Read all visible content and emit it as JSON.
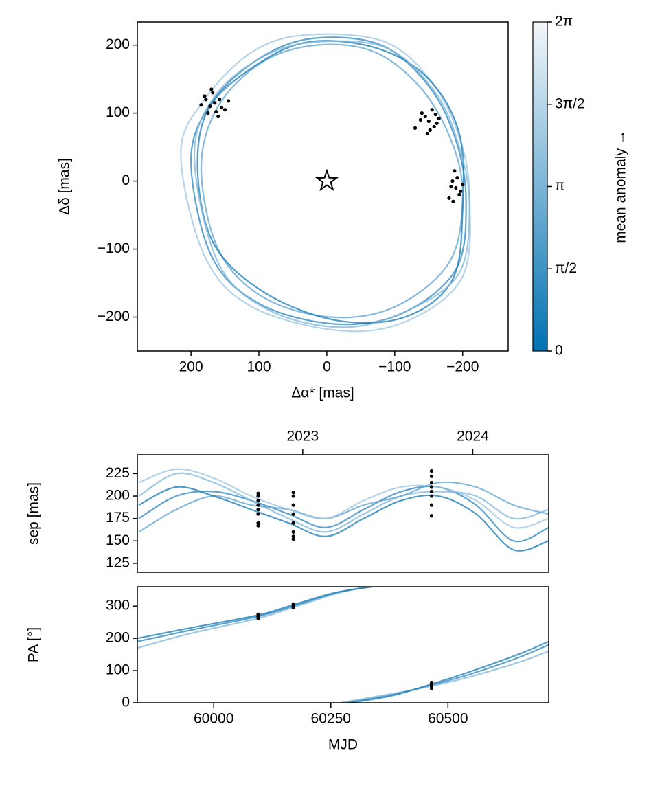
{
  "chart_data": [
    {
      "type": "orbit",
      "xlabel": "Δα* [mas]",
      "ylabel": "Δδ [mas]",
      "xlim": [
        279,
        -267
      ],
      "ylim": [
        -250,
        234
      ],
      "xticks": [
        200,
        100,
        0,
        {
          "value": -100,
          "label": "−100"
        },
        {
          "value": -200,
          "label": "−200"
        }
      ],
      "yticks": [
        {
          "value": -200,
          "label": "−200"
        },
        {
          "value": -100,
          "label": "−100"
        },
        0,
        100,
        200
      ],
      "series": [
        {
          "color": "#2a86bf",
          "x": [
            200,
            170,
            100,
            20,
            -80,
            -150,
            -190,
            -205,
            -190,
            -110,
            -10,
            100,
            170
          ],
          "y": [
            30,
            115,
            180,
            210,
            200,
            140,
            60,
            -30,
            -130,
            -195,
            -210,
            -180,
            -110
          ]
        },
        {
          "color": "#5ea3cf",
          "x": [
            185,
            160,
            95,
            15,
            -70,
            -140,
            -185,
            -200,
            -180,
            -100,
            -5,
            95,
            160
          ],
          "y": [
            20,
            110,
            175,
            200,
            190,
            135,
            55,
            -25,
            -120,
            -185,
            -200,
            -170,
            -100
          ]
        },
        {
          "color": "#9cc6e2",
          "x": [
            215,
            180,
            110,
            30,
            -85,
            -155,
            -195,
            -210,
            -200,
            -120,
            -20,
            110,
            180
          ],
          "y": [
            40,
            120,
            190,
            215,
            205,
            145,
            65,
            -20,
            -140,
            -205,
            -220,
            -185,
            -110
          ]
        },
        {
          "color": "#1479b6",
          "x": [
            190,
            175,
            105,
            25,
            -75,
            -150,
            -195,
            -200,
            -185,
            -115,
            -15,
            90,
            165
          ],
          "y": [
            10,
            105,
            170,
            205,
            195,
            150,
            70,
            -40,
            -145,
            -200,
            -205,
            -165,
            -95
          ]
        },
        {
          "color": "#7db5d9",
          "x": [
            195,
            165,
            90,
            10,
            -90,
            -160,
            -195,
            -210,
            -195,
            -120,
            -25,
            85,
            160
          ],
          "y": [
            35,
            125,
            185,
            205,
            195,
            130,
            50,
            -35,
            -135,
            -190,
            -215,
            -190,
            -120
          ]
        }
      ],
      "points": {
        "color": "#000000",
        "x": [
          165,
          158,
          172,
          180,
          150,
          168,
          175,
          160,
          185,
          145,
          170,
          155,
          178,
          163,
          -150,
          -145,
          -158,
          -140,
          -162,
          -130,
          -155,
          -148,
          -165,
          -138,
          -152,
          -160,
          -190,
          -185,
          -195,
          -188,
          -200,
          -180,
          -192,
          -186,
          -197,
          -183
        ],
        "y": [
          115,
          120,
          110,
          125,
          105,
          130,
          100,
          95,
          112,
          118,
          135,
          108,
          120,
          102,
          88,
          95,
          80,
          100,
          85,
          78,
          105,
          70,
          92,
          90,
          75,
          98,
          -10,
          0,
          -20,
          15,
          -5,
          -25,
          5,
          -30,
          -15,
          -8
        ]
      },
      "star": {
        "x": 0,
        "y": 0
      },
      "colorbar": {
        "label": "mean anomaly →",
        "colors": [
          "#0072b2",
          "#f4f7fa"
        ],
        "lim": [
          0,
          6.283
        ],
        "ticks": [
          0,
          {
            "value": 1.571,
            "label": "π/2"
          },
          {
            "value": 3.1416,
            "label": "π"
          },
          {
            "value": 4.712,
            "label": "3π/2"
          },
          {
            "value": 6.283,
            "label": "2π"
          }
        ]
      }
    },
    {
      "type": "line",
      "ylabel": "sep [mas]",
      "xlim": [
        59837,
        60715
      ],
      "ylim": [
        115,
        246
      ],
      "yticks": [
        125,
        150,
        175,
        200,
        225
      ],
      "x2ticks": [
        {
          "value": 60190,
          "label": "2023"
        },
        {
          "value": 60553,
          "label": "2024"
        }
      ],
      "series": [
        {
          "color": "#2a86bf",
          "x": [
            59840,
            59920,
            60000,
            60080,
            60160,
            60240,
            60320,
            60400,
            60480,
            60560,
            60640,
            60715
          ],
          "y": [
            175,
            200,
            205,
            195,
            180,
            165,
            185,
            205,
            210,
            190,
            150,
            165
          ]
        },
        {
          "color": "#7db5d9",
          "x": [
            59840,
            59920,
            60000,
            60080,
            60160,
            60240,
            60320,
            60400,
            60480,
            60560,
            60640,
            60715
          ],
          "y": [
            200,
            225,
            215,
            195,
            175,
            160,
            180,
            200,
            205,
            200,
            175,
            185
          ]
        },
        {
          "color": "#5ea3cf",
          "x": [
            59840,
            59920,
            60000,
            60080,
            60160,
            60240,
            60320,
            60400,
            60480,
            60560,
            60640,
            60715
          ],
          "y": [
            160,
            185,
            200,
            190,
            185,
            175,
            190,
            200,
            215,
            210,
            190,
            180
          ]
        },
        {
          "color": "#1479b6",
          "x": [
            59840,
            59920,
            60000,
            60080,
            60160,
            60240,
            60320,
            60400,
            60480,
            60560,
            60640,
            60715
          ],
          "y": [
            190,
            210,
            200,
            185,
            170,
            155,
            175,
            195,
            200,
            180,
            140,
            150
          ]
        },
        {
          "color": "#9cc6e2",
          "x": [
            59840,
            59920,
            60000,
            60080,
            60160,
            60240,
            60320,
            60400,
            60480,
            60560,
            60640,
            60715
          ],
          "y": [
            215,
            230,
            220,
            200,
            185,
            175,
            195,
            210,
            210,
            195,
            165,
            175
          ]
        }
      ],
      "points": {
        "color": "#000000",
        "x": [
          60095,
          60095,
          60095,
          60095,
          60095,
          60095,
          60095,
          60095,
          60170,
          60170,
          60170,
          60170,
          60170,
          60170,
          60170,
          60170,
          60465,
          60465,
          60465,
          60465,
          60465,
          60465,
          60465,
          60465
        ],
        "y": [
          170,
          180,
          185,
          190,
          195,
          200,
          167,
          203,
          152,
          160,
          170,
          180,
          190,
          200,
          204,
          155,
          178,
          190,
          200,
          205,
          210,
          215,
          222,
          228
        ]
      }
    },
    {
      "type": "line",
      "xlabel": "MJD",
      "ylabel": "PA [°]",
      "xlim": [
        59837,
        60715
      ],
      "ylim": [
        0,
        360
      ],
      "xticks": [
        60000,
        60250,
        60500
      ],
      "yticks": [
        0,
        100,
        200,
        300
      ],
      "series": [
        {
          "color": "#2a86bf",
          "x": [
            59837,
            59950,
            60095,
            60170,
            60260,
            60340,
            null,
            60280,
            60380,
            60465,
            60550,
            60650,
            60715
          ],
          "y": [
            190,
            225,
            268,
            300,
            340,
            362,
            null,
            0,
            25,
            55,
            90,
            140,
            180
          ]
        },
        {
          "color": "#7db5d9",
          "x": [
            59837,
            59950,
            60095,
            60170,
            60260,
            60330,
            null,
            60270,
            60380,
            60465,
            60550,
            60650,
            60715
          ],
          "y": [
            170,
            215,
            262,
            296,
            338,
            362,
            null,
            0,
            28,
            52,
            82,
            125,
            160
          ]
        },
        {
          "color": "#1479b6",
          "x": [
            59837,
            59950,
            60095,
            60170,
            60260,
            60350,
            null,
            60290,
            60380,
            60465,
            60550,
            60650,
            60715
          ],
          "y": [
            200,
            232,
            272,
            304,
            342,
            362,
            null,
            0,
            22,
            58,
            98,
            150,
            190
          ]
        }
      ],
      "points": {
        "color": "#000000",
        "x": [
          60095,
          60095,
          60095,
          60170,
          60170,
          60170,
          60465,
          60465,
          60465,
          60465
        ],
        "y": [
          262,
          268,
          274,
          295,
          300,
          306,
          45,
          52,
          58,
          63
        ]
      }
    }
  ]
}
